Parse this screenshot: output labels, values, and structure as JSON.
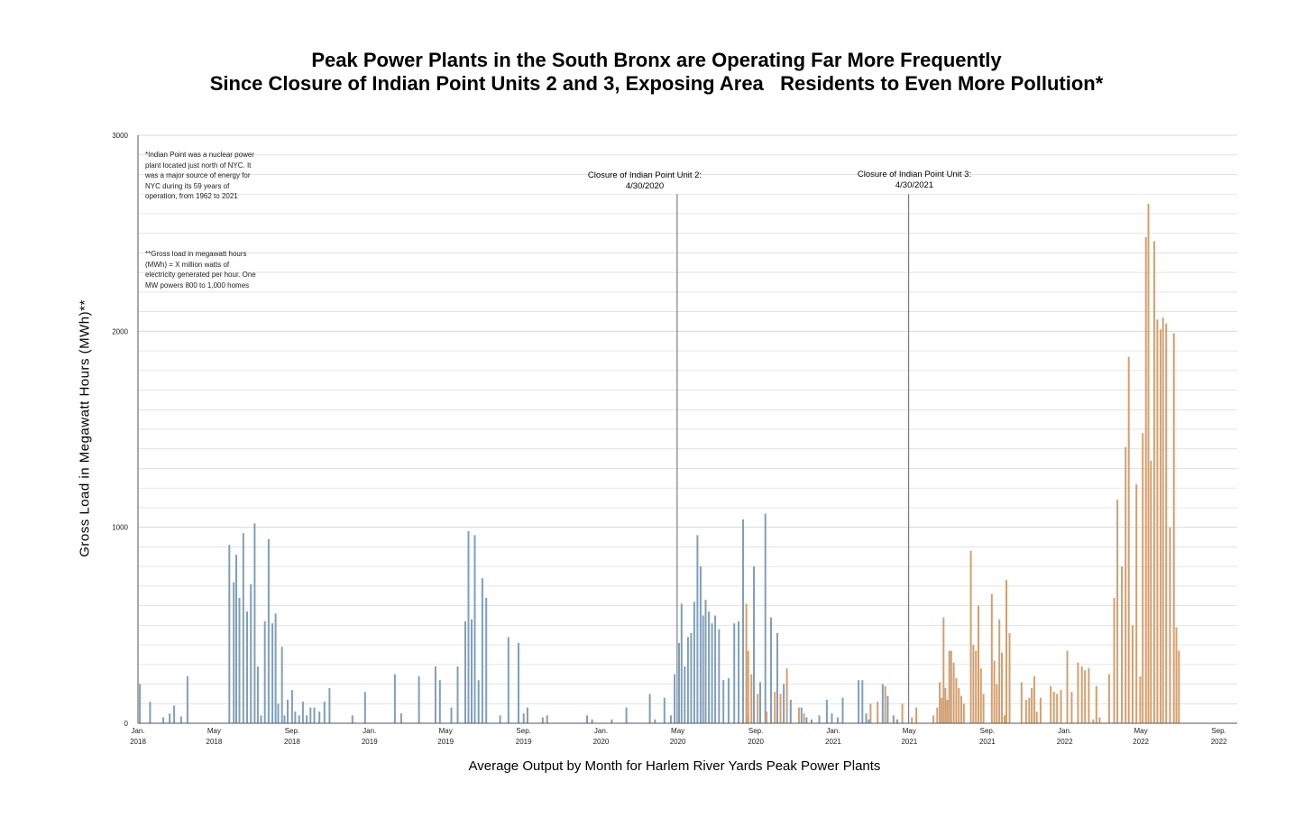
{
  "title_line1": "Peak Power Plants in the South Bronx are Operating Far More Frequently",
  "title_line2": "Since Closure of Indian Point Units 2 and 3, Exposing Area   Residents to Even More Pollution*",
  "note1": "*Indian Point was a nuclear power plant located just north of NYC. It was a major source of energy for NYC during its 59 years of operation, from 1962 to 2021",
  "note2": "**Gross load in megawatt hours (MWh) = X million watts of electricity generated per hour. One MW powers 800 to 1,000 homes",
  "annotation_unit2_line1": "Closure of Indian Point Unit 2:",
  "annotation_unit2_line2": "4/30/2020",
  "annotation_unit3_line1": "Closure of Indian Point Unit 3:",
  "annotation_unit3_line2": "4/30/2021",
  "colors": {
    "before": "#7f9fbb",
    "after": "#d2a070",
    "grid": "#d8d8d8",
    "axis": "#555555",
    "marker": "#666666"
  },
  "chart_data": {
    "type": "bar",
    "title": "Peak Power Plants in the South Bronx are Operating Far More Frequently Since Closure of Indian Point Units 2 and 3, Exposing Area   Residents to Even More Pollution*",
    "xlabel": "Average Output by Month for Harlem River Yards Peak Power Plants",
    "ylabel": "Gross Load in Megawatt Hours (MWh)**",
    "ylim": [
      0,
      3000
    ],
    "xlim": [
      "2018-01-01",
      "2022-09-30"
    ],
    "yticks": [
      "0",
      "1000",
      "2000",
      "3000"
    ],
    "grid": true,
    "xtick_labels": [
      {
        "line1": "Jan.",
        "line2": "2018",
        "date": "2018-01-01"
      },
      {
        "line1": "May",
        "line2": "2018",
        "date": "2018-05-01"
      },
      {
        "line1": "Sep.",
        "line2": "2018",
        "date": "2018-09-01"
      },
      {
        "line1": "Jan.",
        "line2": "2019",
        "date": "2019-01-01"
      },
      {
        "line1": "May",
        "line2": "2019",
        "date": "2019-05-01"
      },
      {
        "line1": "Sep.",
        "line2": "2019",
        "date": "2019-09-01"
      },
      {
        "line1": "Jan.",
        "line2": "2020",
        "date": "2020-01-01"
      },
      {
        "line1": "May",
        "line2": "2020",
        "date": "2020-05-01"
      },
      {
        "line1": "Sep.",
        "line2": "2020",
        "date": "2020-09-01"
      },
      {
        "line1": "Jan.",
        "line2": "2021",
        "date": "2021-01-01"
      },
      {
        "line1": "May",
        "line2": "2021",
        "date": "2021-05-01"
      },
      {
        "line1": "Sep.",
        "line2": "2021",
        "date": "2021-09-01"
      },
      {
        "line1": "Jan.",
        "line2": "2022",
        "date": "2022-01-01"
      },
      {
        "line1": "May",
        "line2": "2022",
        "date": "2022-05-01"
      },
      {
        "line1": "Sep.",
        "line2": "2022",
        "date": "2022-09-01"
      }
    ],
    "markers": [
      {
        "date": "2020-04-30",
        "top_value": 2700
      },
      {
        "date": "2021-04-30",
        "top_value": 2700
      }
    ],
    "series": [
      {
        "values": [
          [
            "2018-01-04",
            200
          ],
          [
            "2018-01-20",
            110
          ],
          [
            "2018-02-10",
            30
          ],
          [
            "2018-02-20",
            50
          ],
          [
            "2018-02-27",
            90
          ],
          [
            "2018-03-10",
            35
          ],
          [
            "2018-03-20",
            240
          ],
          [
            "2018-05-25",
            910
          ],
          [
            "2018-06-01",
            720
          ],
          [
            "2018-06-05",
            860
          ],
          [
            "2018-06-10",
            640
          ],
          [
            "2018-06-16",
            970
          ],
          [
            "2018-06-22",
            570
          ],
          [
            "2018-06-28",
            710
          ],
          [
            "2018-07-04",
            1020
          ],
          [
            "2018-07-09",
            290
          ],
          [
            "2018-07-14",
            40
          ],
          [
            "2018-07-20",
            520
          ],
          [
            "2018-07-26",
            940
          ],
          [
            "2018-08-01",
            510
          ],
          [
            "2018-08-06",
            560
          ],
          [
            "2018-08-10",
            100
          ],
          [
            "2018-08-16",
            390
          ],
          [
            "2018-08-20",
            40
          ],
          [
            "2018-08-25",
            120
          ],
          [
            "2018-09-01",
            170
          ],
          [
            "2018-09-06",
            60
          ],
          [
            "2018-09-12",
            40
          ],
          [
            "2018-09-18",
            110
          ],
          [
            "2018-09-24",
            40
          ],
          [
            "2018-09-30",
            80
          ],
          [
            "2018-10-06",
            80
          ],
          [
            "2018-10-14",
            60
          ],
          [
            "2018-10-22",
            110
          ],
          [
            "2018-10-30",
            180
          ],
          [
            "2018-12-05",
            40
          ],
          [
            "2018-12-25",
            160
          ],
          [
            "2019-02-10",
            250
          ],
          [
            "2019-02-20",
            50
          ],
          [
            "2019-03-20",
            240
          ],
          [
            "2019-04-15",
            290
          ],
          [
            "2019-04-22",
            220
          ],
          [
            "2019-05-10",
            80
          ],
          [
            "2019-05-20",
            290
          ],
          [
            "2019-06-01",
            520
          ],
          [
            "2019-06-06",
            980
          ],
          [
            "2019-06-11",
            530
          ],
          [
            "2019-06-16",
            960
          ],
          [
            "2019-06-22",
            220
          ],
          [
            "2019-06-28",
            740
          ],
          [
            "2019-07-04",
            640
          ],
          [
            "2019-07-26",
            40
          ],
          [
            "2019-08-08",
            440
          ],
          [
            "2019-08-24",
            410
          ],
          [
            "2019-09-01",
            50
          ],
          [
            "2019-09-07",
            80
          ],
          [
            "2019-10-01",
            30
          ],
          [
            "2019-10-08",
            40
          ],
          [
            "2019-12-10",
            40
          ],
          [
            "2019-12-18",
            20
          ],
          [
            "2020-01-18",
            20
          ],
          [
            "2020-02-10",
            80
          ],
          [
            "2020-03-18",
            150
          ],
          [
            "2020-03-26",
            20
          ],
          [
            "2020-04-10",
            130
          ],
          [
            "2020-04-20",
            40
          ],
          [
            "2020-04-26",
            250
          ],
          [
            "2020-05-03",
            410
          ],
          [
            "2020-05-07",
            610
          ],
          [
            "2020-05-12",
            290
          ],
          [
            "2020-05-17",
            440
          ],
          [
            "2020-05-22",
            460
          ],
          [
            "2020-05-27",
            620
          ],
          [
            "2020-06-01",
            960
          ],
          [
            "2020-06-06",
            800
          ],
          [
            "2020-06-10",
            550
          ],
          [
            "2020-06-14",
            630
          ],
          [
            "2020-06-19",
            570
          ],
          [
            "2020-06-24",
            510
          ],
          [
            "2020-06-29",
            550
          ],
          [
            "2020-07-05",
            480
          ],
          [
            "2020-07-12",
            220
          ],
          [
            "2020-07-20",
            230
          ],
          [
            "2020-07-29",
            510
          ],
          [
            "2020-08-05",
            520
          ],
          [
            "2020-08-12",
            1040
          ],
          [
            "2020-08-20",
            40
          ],
          [
            "2020-08-29",
            800
          ],
          [
            "2020-09-08",
            210
          ],
          [
            "2020-09-16",
            1070
          ],
          [
            "2020-09-25",
            540
          ],
          [
            "2020-10-05",
            460
          ],
          [
            "2020-10-15",
            200
          ],
          [
            "2020-10-26",
            120
          ],
          [
            "2020-11-12",
            80
          ],
          [
            "2020-11-20",
            30
          ],
          [
            "2020-11-28",
            20
          ],
          [
            "2020-12-10",
            40
          ],
          [
            "2020-12-22",
            120
          ],
          [
            "2020-12-30",
            50
          ],
          [
            "2021-01-08",
            30
          ],
          [
            "2021-01-16",
            130
          ],
          [
            "2021-02-10",
            220
          ],
          [
            "2021-02-16",
            220
          ],
          [
            "2021-02-22",
            50
          ],
          [
            "2021-02-26",
            20
          ],
          [
            "2021-03-20",
            200
          ],
          [
            "2021-03-28",
            140
          ],
          [
            "2021-04-06",
            40
          ],
          [
            "2021-04-12",
            20
          ]
        ]
      },
      {
        "values": [
          [
            "2020-08-17",
            610
          ],
          [
            "2020-08-20",
            370
          ],
          [
            "2020-08-25",
            250
          ],
          [
            "2020-09-04",
            150
          ],
          [
            "2020-09-18",
            60
          ],
          [
            "2020-10-01",
            160
          ],
          [
            "2020-10-10",
            150
          ],
          [
            "2020-10-20",
            280
          ],
          [
            "2020-11-08",
            80
          ],
          [
            "2020-11-16",
            50
          ],
          [
            "2021-03-01",
            100
          ],
          [
            "2021-03-12",
            110
          ],
          [
            "2021-03-24",
            190
          ],
          [
            "2021-04-20",
            100
          ],
          [
            "2021-05-05",
            30
          ],
          [
            "2021-05-12",
            80
          ],
          [
            "2021-06-08",
            40
          ],
          [
            "2021-06-14",
            80
          ],
          [
            "2021-06-18",
            210
          ],
          [
            "2021-06-21",
            130
          ],
          [
            "2021-06-24",
            540
          ],
          [
            "2021-06-27",
            180
          ],
          [
            "2021-06-30",
            120
          ],
          [
            "2021-07-03",
            370
          ],
          [
            "2021-07-06",
            370
          ],
          [
            "2021-07-10",
            310
          ],
          [
            "2021-07-14",
            230
          ],
          [
            "2021-07-18",
            180
          ],
          [
            "2021-07-22",
            140
          ],
          [
            "2021-07-26",
            100
          ],
          [
            "2021-08-06",
            880
          ],
          [
            "2021-08-10",
            400
          ],
          [
            "2021-08-14",
            370
          ],
          [
            "2021-08-18",
            600
          ],
          [
            "2021-08-22",
            280
          ],
          [
            "2021-08-26",
            150
          ],
          [
            "2021-09-08",
            660
          ],
          [
            "2021-09-12",
            320
          ],
          [
            "2021-09-16",
            200
          ],
          [
            "2021-09-20",
            530
          ],
          [
            "2021-09-24",
            360
          ],
          [
            "2021-09-28",
            40
          ],
          [
            "2021-10-01",
            730
          ],
          [
            "2021-10-06",
            460
          ],
          [
            "2021-10-25",
            210
          ],
          [
            "2021-11-01",
            120
          ],
          [
            "2021-11-06",
            130
          ],
          [
            "2021-11-10",
            180
          ],
          [
            "2021-11-14",
            240
          ],
          [
            "2021-11-18",
            60
          ],
          [
            "2021-11-24",
            130
          ],
          [
            "2021-12-10",
            190
          ],
          [
            "2021-12-15",
            160
          ],
          [
            "2021-12-20",
            150
          ],
          [
            "2021-12-26",
            170
          ],
          [
            "2022-01-05",
            370
          ],
          [
            "2022-01-12",
            160
          ],
          [
            "2022-01-22",
            310
          ],
          [
            "2022-01-28",
            290
          ],
          [
            "2022-02-02",
            270
          ],
          [
            "2022-02-08",
            280
          ],
          [
            "2022-02-15",
            20
          ],
          [
            "2022-02-20",
            190
          ],
          [
            "2022-02-25",
            30
          ],
          [
            "2022-03-12",
            250
          ],
          [
            "2022-03-20",
            640
          ],
          [
            "2022-03-25",
            1140
          ],
          [
            "2022-04-01",
            800
          ],
          [
            "2022-04-07",
            1410
          ],
          [
            "2022-04-12",
            1870
          ],
          [
            "2022-04-18",
            500
          ],
          [
            "2022-04-24",
            1220
          ],
          [
            "2022-04-30",
            240
          ],
          [
            "2022-05-04",
            1480
          ],
          [
            "2022-05-09",
            2480
          ],
          [
            "2022-05-13",
            2650
          ],
          [
            "2022-05-17",
            1340
          ],
          [
            "2022-05-22",
            2460
          ],
          [
            "2022-05-27",
            2060
          ],
          [
            "2022-06-01",
            2010
          ],
          [
            "2022-06-05",
            2070
          ],
          [
            "2022-06-10",
            2040
          ],
          [
            "2022-06-16",
            1000
          ],
          [
            "2022-06-22",
            1990
          ],
          [
            "2022-06-26",
            490
          ],
          [
            "2022-06-30",
            370
          ]
        ]
      }
    ]
  }
}
